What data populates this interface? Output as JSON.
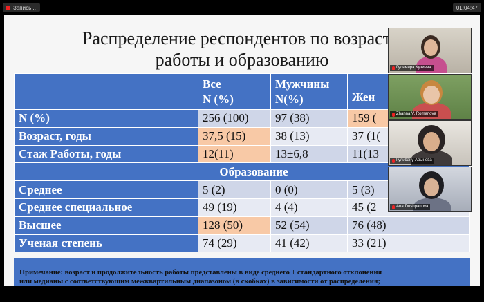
{
  "topbar": {
    "recording_label": "Запись...",
    "time": "01:04:47"
  },
  "slide": {
    "title_line1": "Распределение респондентов по возрасту, ст",
    "title_line2": "работы и образованию",
    "headers": {
      "all": "Все",
      "all_sub": "N (%)",
      "men": "Мужчины",
      "men_sub": "N(%)",
      "women": "Жен"
    },
    "rows": [
      {
        "label": "N (%)",
        "all": "256 (100)",
        "men": "97 (38)",
        "women": "159 ("
      },
      {
        "label": "Возраст, годы",
        "all": "37,5 (15)",
        "men": "38 (13)",
        "women": "37 (1("
      },
      {
        "label": "Стаж Работы, годы",
        "all": "12(11)",
        "men": "13±6,8",
        "women": "11(13"
      }
    ],
    "education_header": "Образование",
    "edu_rows": [
      {
        "label": "Среднее",
        "all": "5 (2)",
        "men": "0 (0)",
        "women": "5 (3)"
      },
      {
        "label": "Среднее специальное",
        "all": "49 (19)",
        "men": "4 (4)",
        "women": "45 (2"
      },
      {
        "label": "Высшее",
        "all": "128 (50)",
        "men": "52 (54)",
        "women": "76 (48)"
      },
      {
        "label": "Ученая степень",
        "all": "74 (29)",
        "men": "41 (42)",
        "women": "33 (21)"
      }
    ],
    "note_line1": "Примечание: возраст и продолжительность работы представлены в виде среднего ± стандартного отклонения",
    "note_line2": "или медианы с соответствующим межквартильным диапазоном (в скобках) в зависимости от распределения;"
  },
  "participants": [
    {
      "name": "Гульмира Кузиева"
    },
    {
      "name": "Zhanna V. Romanova"
    },
    {
      "name": "Гульбану Арынова"
    },
    {
      "name": "AnarDushpanova"
    }
  ],
  "colors": {
    "table_blue": "#4472c4",
    "highlight_orange": "#f8c9a6",
    "recording_red": "#e22222"
  }
}
